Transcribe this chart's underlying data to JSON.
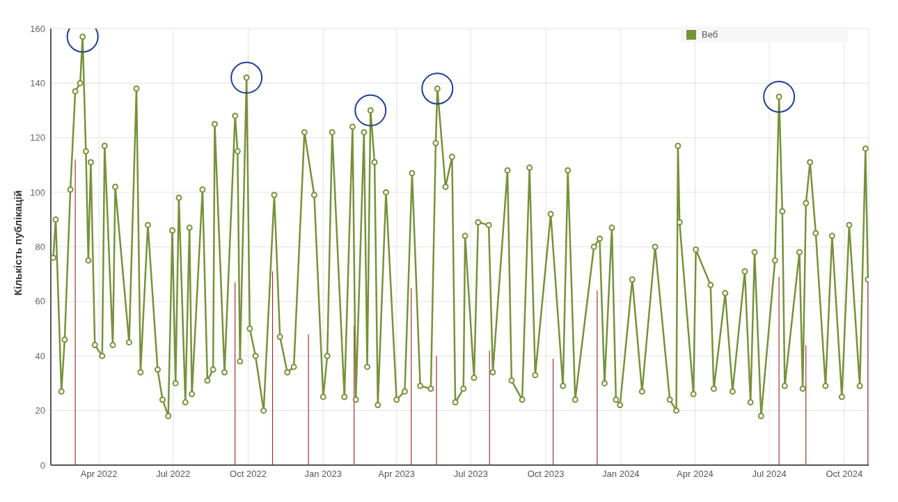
{
  "chart_data": {
    "type": "line",
    "ylabel": "Кількість публікацій",
    "xlim": [
      "2022-02-01",
      "2024-10-31"
    ],
    "ylim": [
      0,
      160
    ],
    "yticks": [
      0,
      20,
      40,
      60,
      80,
      100,
      120,
      140,
      160
    ],
    "xticks": [
      {
        "value": "2022-04-01",
        "label": "Apr 2022"
      },
      {
        "value": "2022-07-01",
        "label": "Jul 2022"
      },
      {
        "value": "2022-10-01",
        "label": "Oct 2022"
      },
      {
        "value": "2023-01-01",
        "label": "Jan 2023"
      },
      {
        "value": "2023-04-01",
        "label": "Apr 2023"
      },
      {
        "value": "2023-07-01",
        "label": "Jul 2023"
      },
      {
        "value": "2023-10-01",
        "label": "Oct 2023"
      },
      {
        "value": "2024-01-01",
        "label": "Jan 2024"
      },
      {
        "value": "2024-04-01",
        "label": "Apr 2024"
      },
      {
        "value": "2024-07-01",
        "label": "Jul 2024"
      },
      {
        "value": "2024-10-01",
        "label": "Oct 2024"
      }
    ],
    "grid": true,
    "legend": "top right",
    "marker": "circle",
    "line_style": "solid",
    "series": [
      {
        "type": "bar",
        "color": "#8b1a1a",
        "x": [
          "2022-03-03",
          "2022-09-15",
          "2022-10-31",
          "2022-12-14",
          "2023-02-08",
          "2023-04-19",
          "2023-05-20",
          "2023-07-24",
          "2023-10-10",
          "2023-12-03",
          "2024-07-13",
          "2024-08-15",
          "2024-10-30"
        ],
        "values": [
          112,
          67,
          71,
          48,
          51,
          65,
          40,
          42,
          39,
          64,
          69,
          44,
          67
        ]
      },
      {
        "name": "Веб",
        "color": "#77913a",
        "x": [
          "2022-02-04",
          "2022-02-07",
          "2022-02-14",
          "2022-02-18",
          "2022-02-25",
          "2022-03-03",
          "2022-03-09",
          "2022-03-12",
          "2022-03-16",
          "2022-03-19",
          "2022-03-22",
          "2022-03-27",
          "2022-04-05",
          "2022-04-08",
          "2022-04-18",
          "2022-04-21",
          "2022-05-08",
          "2022-05-17",
          "2022-05-22",
          "2022-05-31",
          "2022-06-12",
          "2022-06-18",
          "2022-06-25",
          "2022-06-30",
          "2022-07-04",
          "2022-07-08",
          "2022-07-16",
          "2022-07-21",
          "2022-07-24",
          "2022-08-06",
          "2022-08-12",
          "2022-08-19",
          "2022-08-21",
          "2022-09-02",
          "2022-09-15",
          "2022-09-18",
          "2022-09-21",
          "2022-09-29",
          "2022-10-03",
          "2022-10-10",
          "2022-10-20",
          "2022-11-02",
          "2022-11-09",
          "2022-11-18",
          "2022-11-26",
          "2022-12-09",
          "2022-12-21",
          "2023-01-01",
          "2023-01-06",
          "2023-01-12",
          "2023-01-27",
          "2023-02-06",
          "2023-02-10",
          "2023-02-20",
          "2023-02-24",
          "2023-02-28",
          "2023-03-05",
          "2023-03-09",
          "2023-03-19",
          "2023-04-01",
          "2023-04-11",
          "2023-04-20",
          "2023-04-30",
          "2023-05-13",
          "2023-05-19",
          "2023-05-21",
          "2023-05-31",
          "2023-06-08",
          "2023-06-12",
          "2023-06-22",
          "2023-06-24",
          "2023-07-05",
          "2023-07-10",
          "2023-07-23",
          "2023-07-28",
          "2023-08-15",
          "2023-08-20",
          "2023-09-02",
          "2023-09-11",
          "2023-09-18",
          "2023-10-07",
          "2023-10-22",
          "2023-10-28",
          "2023-11-06",
          "2023-11-29",
          "2023-12-06",
          "2023-12-12",
          "2023-12-21",
          "2023-12-26",
          "2023-12-31",
          "2024-01-15",
          "2024-01-27",
          "2024-02-12",
          "2024-03-01",
          "2024-03-09",
          "2024-03-11",
          "2024-03-13",
          "2024-03-30",
          "2024-04-02",
          "2024-04-20",
          "2024-04-24",
          "2024-05-08",
          "2024-05-17",
          "2024-06-01",
          "2024-06-08",
          "2024-06-13",
          "2024-06-21",
          "2024-07-08",
          "2024-07-13",
          "2024-07-17",
          "2024-07-20",
          "2024-08-07",
          "2024-08-11",
          "2024-08-15",
          "2024-08-20",
          "2024-08-27",
          "2024-09-08",
          "2024-09-16",
          "2024-09-28",
          "2024-10-07",
          "2024-10-20",
          "2024-10-27",
          "2024-10-30"
        ],
        "values": [
          76,
          90,
          27,
          46,
          101,
          137,
          140,
          157,
          115,
          75,
          111,
          44,
          40,
          117,
          44,
          102,
          45,
          138,
          34,
          88,
          35,
          24,
          18,
          86,
          30,
          98,
          23,
          87,
          26,
          101,
          31,
          35,
          125,
          34,
          128,
          115,
          38,
          142,
          50,
          40,
          20,
          99,
          47,
          34,
          36,
          122,
          99,
          25,
          40,
          122,
          25,
          124,
          24,
          122,
          36,
          130,
          111,
          22,
          100,
          24,
          27,
          107,
          29,
          28,
          118,
          138,
          102,
          113,
          23,
          28,
          84,
          32,
          89,
          88,
          34,
          108,
          31,
          24,
          109,
          33,
          92,
          29,
          108,
          24,
          80,
          83,
          30,
          87,
          24,
          22,
          68,
          27,
          80,
          24,
          20,
          117,
          89,
          26,
          79,
          66,
          28,
          63,
          27,
          71,
          23,
          78,
          18,
          75,
          135,
          93,
          29,
          78,
          28,
          96,
          111,
          85,
          29,
          84,
          25,
          88,
          29,
          116,
          68
        ]
      },
      {
        "type": "scatter",
        "color": "#1f3f8f",
        "marker": "circle",
        "x": [
          "2022-03-12",
          "2022-09-29",
          "2023-02-28",
          "2023-05-21",
          "2024-07-13"
        ],
        "values": [
          157,
          142,
          130,
          138,
          135
        ]
      }
    ]
  }
}
